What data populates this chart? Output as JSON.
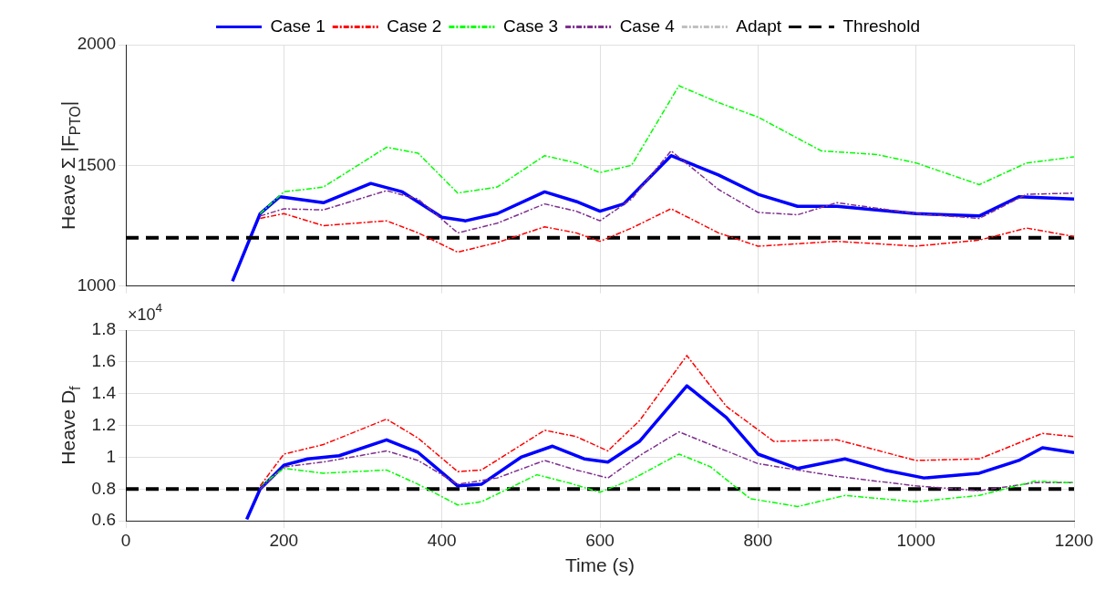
{
  "chart_data": [
    {
      "type": "line",
      "ylabel": "Heave Σ |F$_{PTO}$|",
      "xlim": [
        0,
        1200
      ],
      "xticks": [
        0,
        200,
        400,
        600,
        800,
        1000,
        1200
      ],
      "ylim": [
        1000,
        2000
      ],
      "yticks": [
        1000,
        1500,
        2000
      ],
      "tick_labels": "y",
      "grid": true,
      "legend": "top",
      "marker": "none",
      "series": [
        {
          "name": "Case 1",
          "color": "#0000ff",
          "line_style": "solid",
          "x": [
            135,
            170,
            195,
            250,
            310,
            350,
            400,
            430,
            470,
            530,
            570,
            600,
            630,
            690,
            750,
            800,
            850,
            900,
            1000,
            1080,
            1130,
            1200
          ],
          "values": [
            1020,
            1300,
            1370,
            1345,
            1425,
            1390,
            1285,
            1270,
            1300,
            1390,
            1350,
            1310,
            1340,
            1540,
            1460,
            1380,
            1330,
            1330,
            1300,
            1290,
            1370,
            1360
          ]
        },
        {
          "name": "Case 2",
          "color": "#ff0000",
          "line_style": "dashed",
          "x": [
            170,
            200,
            250,
            330,
            370,
            420,
            470,
            530,
            570,
            600,
            640,
            690,
            750,
            800,
            900,
            1000,
            1080,
            1140,
            1200
          ],
          "values": [
            1280,
            1300,
            1250,
            1270,
            1220,
            1140,
            1180,
            1245,
            1220,
            1185,
            1240,
            1320,
            1220,
            1165,
            1185,
            1165,
            1190,
            1240,
            1205
          ]
        },
        {
          "name": "Case 3",
          "color": "#00ff00",
          "line_style": "dashed",
          "x": [
            170,
            200,
            250,
            330,
            370,
            420,
            470,
            530,
            570,
            600,
            640,
            700,
            750,
            800,
            880,
            950,
            1000,
            1080,
            1140,
            1200
          ],
          "values": [
            1300,
            1390,
            1410,
            1575,
            1550,
            1385,
            1410,
            1540,
            1510,
            1470,
            1500,
            1830,
            1760,
            1700,
            1560,
            1545,
            1510,
            1420,
            1510,
            1535
          ]
        },
        {
          "name": "Case 4",
          "color": "#7e2f8e",
          "line_style": "dashed",
          "x": [
            170,
            200,
            250,
            330,
            370,
            420,
            470,
            530,
            570,
            600,
            640,
            690,
            750,
            800,
            850,
            900,
            1000,
            1080,
            1140,
            1200
          ],
          "values": [
            1290,
            1320,
            1315,
            1395,
            1360,
            1220,
            1260,
            1340,
            1310,
            1270,
            1360,
            1560,
            1400,
            1305,
            1295,
            1345,
            1300,
            1280,
            1380,
            1385
          ]
        },
        {
          "name": "Adapt",
          "color": "#c0c0c0",
          "line_style": "dashed"
        }
      ],
      "ref_lines": [
        {
          "axis": "y",
          "value": 1200,
          "label": "Threshold",
          "color": "#000000",
          "line_style": "dashed"
        }
      ]
    },
    {
      "type": "line",
      "ylabel": "Heave D$_{f}$",
      "xlabel": "Time (s)",
      "annotations": [
        "×10$^{4}$"
      ],
      "xlim": [
        0,
        1200
      ],
      "xticks": [
        0,
        200,
        400,
        600,
        800,
        1000,
        1200
      ],
      "ylim": [
        0.6,
        1.8
      ],
      "yticks": [
        0.6,
        0.8,
        1,
        1.2,
        1.4,
        1.6,
        1.8
      ],
      "grid": true,
      "marker": "none",
      "series": [
        {
          "color": "#0000ff",
          "line_style": "solid",
          "x": [
            153,
            170,
            200,
            230,
            270,
            330,
            370,
            420,
            450,
            500,
            540,
            580,
            610,
            650,
            710,
            760,
            800,
            850,
            910,
            960,
            1010,
            1080,
            1130,
            1160,
            1200
          ],
          "values": [
            0.61,
            0.8,
            0.95,
            0.99,
            1.01,
            1.11,
            1.03,
            0.82,
            0.83,
            1.0,
            1.07,
            0.99,
            0.97,
            1.1,
            1.45,
            1.25,
            1.02,
            0.93,
            0.99,
            0.92,
            0.87,
            0.9,
            0.98,
            1.06,
            1.03
          ]
        },
        {
          "color": "#ff0000",
          "line_style": "dashed",
          "x": [
            170,
            200,
            250,
            330,
            370,
            420,
            450,
            530,
            570,
            610,
            650,
            710,
            760,
            820,
            900,
            1000,
            1080,
            1160,
            1200
          ],
          "values": [
            0.82,
            1.02,
            1.08,
            1.24,
            1.12,
            0.91,
            0.92,
            1.17,
            1.13,
            1.04,
            1.23,
            1.64,
            1.32,
            1.1,
            1.11,
            0.98,
            0.99,
            1.15,
            1.13
          ]
        },
        {
          "color": "#00ff00",
          "line_style": "dashed",
          "x": [
            170,
            200,
            250,
            330,
            370,
            420,
            450,
            520,
            560,
            600,
            640,
            700,
            740,
            790,
            850,
            910,
            1000,
            1080,
            1150,
            1200
          ],
          "values": [
            0.82,
            0.93,
            0.9,
            0.92,
            0.83,
            0.7,
            0.72,
            0.89,
            0.84,
            0.78,
            0.86,
            1.02,
            0.94,
            0.74,
            0.69,
            0.76,
            0.72,
            0.76,
            0.85,
            0.84
          ]
        },
        {
          "color": "#7e2f8e",
          "line_style": "dashed",
          "x": [
            170,
            200,
            250,
            330,
            370,
            420,
            470,
            530,
            570,
            610,
            650,
            700,
            750,
            800,
            900,
            1000,
            1080,
            1150,
            1200
          ],
          "values": [
            0.8,
            0.94,
            0.97,
            1.04,
            0.98,
            0.83,
            0.87,
            0.98,
            0.92,
            0.87,
            1.01,
            1.16,
            1.06,
            0.96,
            0.88,
            0.82,
            0.79,
            0.84,
            0.84
          ]
        }
      ],
      "ref_lines": [
        {
          "axis": "y",
          "value": 0.8,
          "color": "#000000",
          "line_style": "dashed"
        }
      ]
    }
  ]
}
